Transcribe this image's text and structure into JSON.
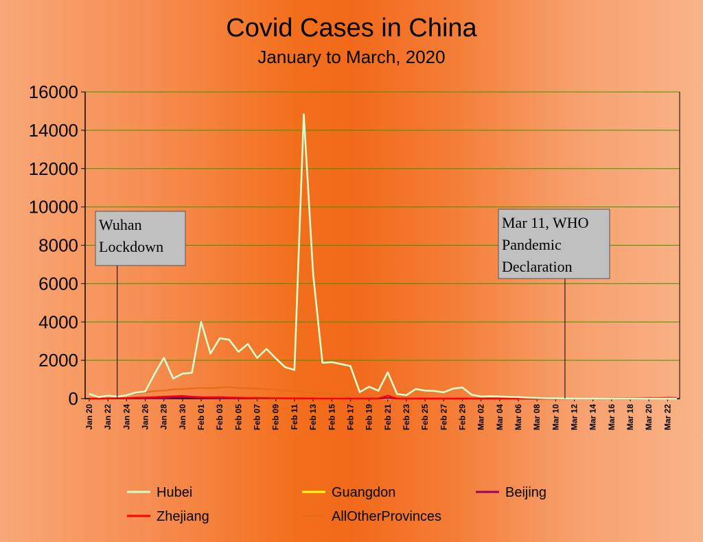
{
  "chart_data": {
    "type": "line",
    "title": "Covid Cases in China",
    "subtitle": "January to March, 2020",
    "xlabel": "",
    "ylabel": "",
    "ylim": [
      0,
      16000
    ],
    "yticks": [
      0,
      2000,
      4000,
      6000,
      8000,
      10000,
      12000,
      14000,
      16000
    ],
    "grid": true,
    "legend_position": "bottom",
    "x": [
      "Jan 20",
      "Jan 21",
      "Jan 22",
      "Jan 23",
      "Jan 24",
      "Jan 25",
      "Jan 26",
      "Jan 27",
      "Jan 28",
      "Jan 29",
      "Jan 30",
      "Jan 31",
      "Feb 01",
      "Feb 02",
      "Feb 03",
      "Feb 04",
      "Feb 05",
      "Feb 06",
      "Feb 07",
      "Feb 08",
      "Feb 09",
      "Feb 10",
      "Feb 11",
      "Feb 12",
      "Feb 13",
      "Feb 14",
      "Feb 15",
      "Feb 16",
      "Feb 17",
      "Feb 18",
      "Feb 19",
      "Feb 20",
      "Feb 21",
      "Feb 22",
      "Feb 23",
      "Feb 24",
      "Feb 25",
      "Feb 26",
      "Feb 27",
      "Feb 28",
      "Feb 29",
      "Mar 01",
      "Mar 02",
      "Mar 03",
      "Mar 04",
      "Mar 05",
      "Mar 06",
      "Mar 07",
      "Mar 08",
      "Mar 09",
      "Mar 10",
      "Mar 11",
      "Mar 12",
      "Mar 13",
      "Mar 14",
      "Mar 15",
      "Mar 16",
      "Mar 17",
      "Mar 18",
      "Mar 19",
      "Mar 20",
      "Mar 21",
      "Mar 22",
      "Mar 23"
    ],
    "tick_labels": [
      "Jan 20",
      "Jan 22",
      "Jan 24",
      "Jan 26",
      "Jan 28",
      "Jan 30",
      "Feb 01",
      "Feb 03",
      "Feb 05",
      "Feb 07",
      "Feb 09",
      "Feb 11",
      "Feb 13",
      "Feb 15",
      "Feb 17",
      "Feb 19",
      "Feb 21",
      "Feb 23",
      "Feb 25",
      "Feb 27",
      "Feb 29",
      "Mar 02",
      "Mar 04",
      "Mar 06",
      "Mar 08",
      "Mar 10",
      "Mar 12",
      "Mar 14",
      "Mar 16",
      "Mar 18",
      "Mar 20",
      "Mar 22"
    ],
    "series": [
      {
        "name": "Hubei",
        "color": "#ccffcc",
        "values": [
          250,
          80,
          150,
          105,
          180,
          320,
          370,
          1290,
          2130,
          1050,
          1300,
          1350,
          4000,
          2350,
          3150,
          3070,
          2440,
          2850,
          2120,
          2590,
          2100,
          1638,
          1500,
          14840,
          6500,
          1870,
          1900,
          1800,
          1700,
          340,
          620,
          410,
          1370,
          240,
          180,
          500,
          420,
          400,
          330,
          520,
          580,
          200,
          110,
          120,
          110,
          90,
          80,
          50,
          36,
          17,
          13,
          8,
          5,
          4,
          4,
          3,
          1,
          1,
          0,
          0,
          0,
          0,
          0,
          0
        ]
      },
      {
        "name": "Guangdon",
        "color": "#ffff00",
        "values": [
          15,
          10,
          20,
          20,
          30,
          40,
          50,
          60,
          60,
          80,
          90,
          70,
          60,
          50,
          40,
          40,
          30,
          30,
          20,
          20,
          10,
          10,
          10,
          5,
          5,
          5,
          5,
          3,
          3,
          2,
          2,
          1,
          1,
          1,
          0,
          0,
          0,
          0,
          0,
          0,
          0,
          0,
          0,
          0,
          0,
          0,
          0,
          0,
          0,
          0,
          0,
          0,
          0,
          0,
          0,
          0,
          0,
          0,
          0,
          5,
          10,
          5,
          5,
          5
        ]
      },
      {
        "name": "Beijing",
        "color": "#990066",
        "values": [
          0,
          0,
          5,
          10,
          10,
          15,
          20,
          25,
          30,
          50,
          70,
          50,
          40,
          30,
          30,
          30,
          25,
          25,
          25,
          20,
          15,
          10,
          10,
          5,
          5,
          5,
          3,
          3,
          2,
          2,
          1,
          1,
          30,
          1,
          1,
          1,
          1,
          1,
          1,
          1,
          1,
          1,
          1,
          1,
          1,
          1,
          1,
          1,
          1,
          1,
          1,
          1,
          1,
          1,
          1,
          1,
          1,
          1,
          1,
          5,
          10,
          20,
          30,
          10
        ]
      },
      {
        "name": "Zhejiang",
        "color": "#ff0000",
        "values": [
          0,
          0,
          10,
          20,
          30,
          50,
          60,
          80,
          100,
          120,
          140,
          100,
          80,
          70,
          80,
          60,
          50,
          40,
          40,
          30,
          20,
          20,
          15,
          10,
          10,
          5,
          5,
          5,
          3,
          3,
          2,
          2,
          150,
          2,
          1,
          1,
          1,
          1,
          1,
          1,
          1,
          1,
          1,
          1,
          1,
          1,
          1,
          1,
          1,
          1,
          1,
          1,
          1,
          1,
          1,
          1,
          1,
          1,
          1,
          10,
          30,
          20,
          40,
          30
        ]
      },
      {
        "name": "AllOtherProvinces",
        "color": "#e86c1c",
        "values": [
          20,
          30,
          60,
          100,
          200,
          280,
          320,
          400,
          410,
          480,
          500,
          530,
          560,
          540,
          570,
          600,
          560,
          540,
          520,
          500,
          460,
          420,
          380,
          340,
          300,
          260,
          220,
          180,
          140,
          100,
          80,
          60,
          40,
          30,
          25,
          20,
          18,
          15,
          12,
          10,
          10,
          8,
          8,
          7,
          6,
          5,
          5,
          5,
          5,
          5,
          5,
          5,
          5,
          5,
          5,
          10,
          15,
          20,
          25,
          30,
          40,
          40,
          50,
          40
        ]
      }
    ],
    "annotations": [
      {
        "label_lines": [
          "Wuhan",
          "Lockdown"
        ],
        "x": "Jan 23"
      },
      {
        "label_lines": [
          "Mar 11, WHO",
          "Pandemic",
          "Declaration"
        ],
        "x": "Mar 11"
      }
    ]
  }
}
